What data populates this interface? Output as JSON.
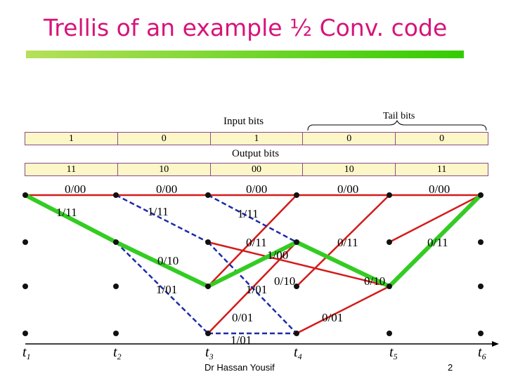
{
  "slide": {
    "title": "Trellis of an example ½ Conv. code",
    "author": "Dr Hassan Yousif",
    "page_number": "2"
  },
  "headers": {
    "input_label": "Input bits",
    "tail_label": "Tail bits",
    "output_label": "Output bits",
    "input_bits": [
      "1",
      "0",
      "1",
      "0",
      "0"
    ],
    "output_bits": [
      "11",
      "10",
      "00",
      "10",
      "11"
    ]
  },
  "time_labels": [
    {
      "letter": "t",
      "sub": "1"
    },
    {
      "letter": "t",
      "sub": "2"
    },
    {
      "letter": "t",
      "sub": "3"
    },
    {
      "letter": "t",
      "sub": "4"
    },
    {
      "letter": "t",
      "sub": "5"
    },
    {
      "letter": "t",
      "sub": "6"
    }
  ],
  "branch_labels": [
    {
      "text": "0/00",
      "name": "label-0-00-s1"
    },
    {
      "text": "0/00",
      "name": "label-0-00-s2"
    },
    {
      "text": "0/00",
      "name": "label-0-00-s3"
    },
    {
      "text": "0/00",
      "name": "label-0-00-s4"
    },
    {
      "text": "0/00",
      "name": "label-0-00-s5"
    },
    {
      "text": "1/11",
      "name": "label-1-11-s1"
    },
    {
      "text": "1/11",
      "name": "label-1-11-s2"
    },
    {
      "text": "1/11",
      "name": "label-1-11-s3"
    },
    {
      "text": "0/11",
      "name": "label-0-11-s3"
    },
    {
      "text": "0/11",
      "name": "label-0-11-s4"
    },
    {
      "text": "0/11",
      "name": "label-0-11-s5"
    },
    {
      "text": "1/00",
      "name": "label-1-00-s3"
    },
    {
      "text": "0/10",
      "name": "label-0-10-s2"
    },
    {
      "text": "0/10",
      "name": "label-0-10-s3"
    },
    {
      "text": "0/10",
      "name": "label-0-10-s4"
    },
    {
      "text": "1/01",
      "name": "label-1-01-s2"
    },
    {
      "text": "1/01",
      "name": "label-1-01-s3"
    },
    {
      "text": "0/01",
      "name": "label-0-01-s3"
    },
    {
      "text": "0/01",
      "name": "label-0-01-s4"
    },
    {
      "text": "1/01",
      "name": "label-1-01-bottom"
    }
  ],
  "colors": {
    "title": "#d6137a",
    "input_zero_branch": "#d41a1a",
    "input_one_branch": "#1c2ba8",
    "decoded_path": "#33cc22",
    "node": "#111111"
  }
}
